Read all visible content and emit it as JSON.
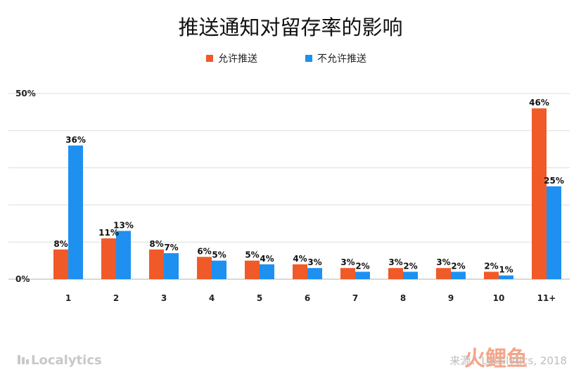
{
  "chart_data": {
    "type": "bar",
    "title": "推送通知对留存率的影响",
    "categories": [
      "1",
      "2",
      "3",
      "4",
      "5",
      "6",
      "7",
      "8",
      "9",
      "10",
      "11+"
    ],
    "series": [
      {
        "name": "允许推送",
        "color": "#f05a28",
        "values": [
          8,
          11,
          8,
          6,
          5,
          4,
          3,
          3,
          3,
          2,
          46
        ]
      },
      {
        "name": "不允许推送",
        "color": "#1e90f0",
        "values": [
          36,
          13,
          7,
          5,
          4,
          3,
          2,
          2,
          2,
          1,
          25
        ]
      }
    ],
    "value_suffix": "%",
    "ylim": [
      0,
      50
    ],
    "yticks": [
      "0%",
      "50%"
    ],
    "grid": true,
    "legend": "top-center",
    "xlabel": "",
    "ylabel": ""
  },
  "footer": {
    "logo_text": "Localytics",
    "source": "来源：Localytics, 2018"
  },
  "watermark": {
    "text": "火鲤鱼"
  },
  "colors": {
    "grid": "#dddddd",
    "axis": "#cccccc"
  }
}
